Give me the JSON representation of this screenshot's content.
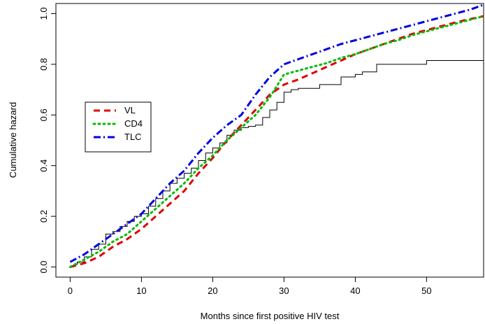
{
  "chart_data": {
    "type": "line",
    "title": "",
    "xlabel": "Months since first positive HIV test",
    "ylabel": "Cumulative hazard",
    "xlim": [
      -2,
      58
    ],
    "ylim": [
      -0.04,
      1.04
    ],
    "x_ticks": [
      0,
      10,
      20,
      30,
      40,
      50
    ],
    "y_ticks": [
      0.0,
      0.2,
      0.4,
      0.6,
      0.8,
      1.0
    ],
    "x_tick_labels": [
      "0",
      "10",
      "20",
      "30",
      "40",
      "50"
    ],
    "y_tick_labels": [
      "0.0",
      "0.2",
      "0.4",
      "0.6",
      "0.8",
      "1.0"
    ],
    "legend_position": "left",
    "grid": false,
    "series": [
      {
        "name": "",
        "color": "#000000",
        "style": "solid",
        "step": true,
        "points": [
          [
            0,
            0.0
          ],
          [
            0.5,
            0.01
          ],
          [
            1,
            0.02
          ],
          [
            2,
            0.04
          ],
          [
            3,
            0.07
          ],
          [
            4,
            0.09
          ],
          [
            5,
            0.13
          ],
          [
            6,
            0.14
          ],
          [
            7,
            0.16
          ],
          [
            8,
            0.18
          ],
          [
            9,
            0.2
          ],
          [
            10,
            0.21
          ],
          [
            11,
            0.24
          ],
          [
            12,
            0.27
          ],
          [
            13,
            0.3
          ],
          [
            14,
            0.33
          ],
          [
            15,
            0.35
          ],
          [
            16,
            0.37
          ],
          [
            17,
            0.39
          ],
          [
            18,
            0.42
          ],
          [
            19,
            0.45
          ],
          [
            20,
            0.47
          ],
          [
            21,
            0.49
          ],
          [
            22,
            0.52
          ],
          [
            23,
            0.54
          ],
          [
            24,
            0.55
          ],
          [
            25,
            0.555
          ],
          [
            26,
            0.56
          ],
          [
            27,
            0.59
          ],
          [
            28,
            0.62
          ],
          [
            29,
            0.65
          ],
          [
            30,
            0.69
          ],
          [
            31,
            0.7
          ],
          [
            32,
            0.705
          ],
          [
            35,
            0.72
          ],
          [
            38,
            0.75
          ],
          [
            40,
            0.76
          ],
          [
            41,
            0.77
          ],
          [
            43,
            0.8
          ],
          [
            50,
            0.815
          ],
          [
            58,
            0.83
          ]
        ]
      },
      {
        "name": "VL",
        "color": "#e00000",
        "style": "dashed",
        "points": [
          [
            0,
            0.0
          ],
          [
            2,
            0.015
          ],
          [
            4,
            0.04
          ],
          [
            6,
            0.08
          ],
          [
            8,
            0.11
          ],
          [
            10,
            0.15
          ],
          [
            12,
            0.2
          ],
          [
            14,
            0.25
          ],
          [
            16,
            0.3
          ],
          [
            18,
            0.37
          ],
          [
            20,
            0.43
          ],
          [
            22,
            0.5
          ],
          [
            24,
            0.56
          ],
          [
            26,
            0.62
          ],
          [
            28,
            0.68
          ],
          [
            30,
            0.72
          ],
          [
            32,
            0.74
          ],
          [
            34,
            0.765
          ],
          [
            36,
            0.79
          ],
          [
            38,
            0.815
          ],
          [
            40,
            0.84
          ],
          [
            42,
            0.86
          ],
          [
            44,
            0.88
          ],
          [
            46,
            0.9
          ],
          [
            48,
            0.92
          ],
          [
            50,
            0.935
          ],
          [
            52,
            0.95
          ],
          [
            54,
            0.965
          ],
          [
            56,
            0.978
          ],
          [
            58,
            0.99
          ]
        ]
      },
      {
        "name": "CD4",
        "color": "#00bb00",
        "style": "dotted",
        "points": [
          [
            0,
            0.0
          ],
          [
            2,
            0.03
          ],
          [
            4,
            0.06
          ],
          [
            6,
            0.1
          ],
          [
            8,
            0.13
          ],
          [
            10,
            0.18
          ],
          [
            12,
            0.23
          ],
          [
            14,
            0.28
          ],
          [
            16,
            0.33
          ],
          [
            18,
            0.39
          ],
          [
            20,
            0.44
          ],
          [
            22,
            0.5
          ],
          [
            24,
            0.55
          ],
          [
            26,
            0.6
          ],
          [
            28,
            0.67
          ],
          [
            30,
            0.76
          ],
          [
            32,
            0.775
          ],
          [
            34,
            0.79
          ],
          [
            36,
            0.805
          ],
          [
            38,
            0.825
          ],
          [
            40,
            0.84
          ],
          [
            42,
            0.86
          ],
          [
            44,
            0.88
          ],
          [
            46,
            0.895
          ],
          [
            48,
            0.915
          ],
          [
            50,
            0.93
          ],
          [
            52,
            0.945
          ],
          [
            54,
            0.96
          ],
          [
            56,
            0.975
          ],
          [
            58,
            0.99
          ]
        ]
      },
      {
        "name": "TLC",
        "color": "#0000e0",
        "style": "dashdot",
        "points": [
          [
            0,
            0.02
          ],
          [
            2,
            0.05
          ],
          [
            4,
            0.09
          ],
          [
            6,
            0.13
          ],
          [
            8,
            0.17
          ],
          [
            10,
            0.21
          ],
          [
            12,
            0.27
          ],
          [
            14,
            0.33
          ],
          [
            16,
            0.38
          ],
          [
            18,
            0.45
          ],
          [
            20,
            0.51
          ],
          [
            22,
            0.56
          ],
          [
            24,
            0.6
          ],
          [
            26,
            0.68
          ],
          [
            28,
            0.75
          ],
          [
            30,
            0.8
          ],
          [
            32,
            0.82
          ],
          [
            34,
            0.84
          ],
          [
            36,
            0.86
          ],
          [
            38,
            0.88
          ],
          [
            40,
            0.895
          ],
          [
            42,
            0.91
          ],
          [
            44,
            0.925
          ],
          [
            46,
            0.94
          ],
          [
            48,
            0.955
          ],
          [
            50,
            0.97
          ],
          [
            52,
            0.985
          ],
          [
            54,
            1.0
          ],
          [
            56,
            1.015
          ],
          [
            58,
            1.035
          ]
        ]
      }
    ]
  }
}
